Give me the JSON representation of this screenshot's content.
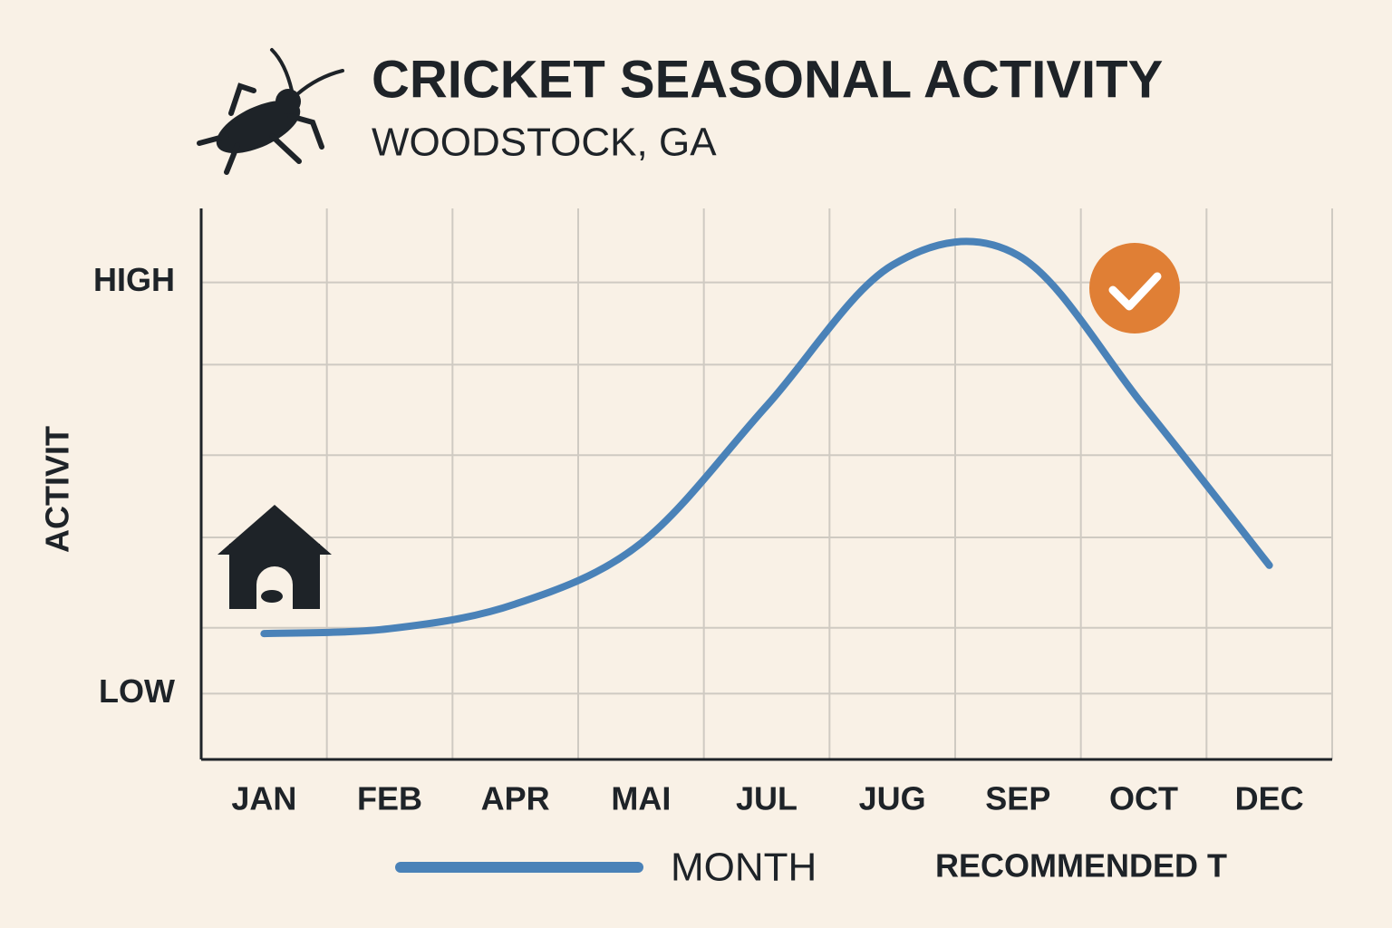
{
  "chart_data": {
    "type": "line",
    "title": "CRICKET SEASONAL ACTIVITY",
    "subtitle": "WOODSTOCK, GA",
    "y_label": "ACTIVIT",
    "annotation": "RECOMMENDED T",
    "categories": [
      "JAN",
      "FEB",
      "APR",
      "MAI",
      "JUL",
      "JUG",
      "SEP",
      "OCT",
      "DEC"
    ],
    "series": [
      {
        "name": "MONTH",
        "color": "#4a82b8",
        "values": [
          0.73,
          0.79,
          1.09,
          1.83,
          3.5,
          5.21,
          5.33,
          3.5,
          1.56
        ]
      }
    ],
    "ylim": [
      -0.8,
      5.9
    ],
    "yticks": [
      {
        "value": 0,
        "label": "LOW"
      },
      {
        "value": 5,
        "label": "HIGH"
      }
    ],
    "ygrid": [
      4,
      2.9,
      1.9,
      0.8
    ],
    "grid": true
  }
}
